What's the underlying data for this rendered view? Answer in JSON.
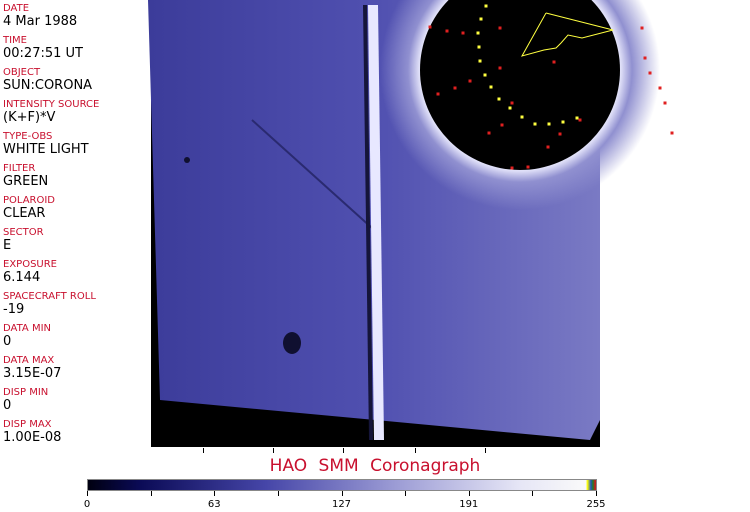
{
  "metadata": [
    {
      "label": "DATE",
      "value": "4 Mar 1988"
    },
    {
      "label": "TIME",
      "value": "00:27:51 UT"
    },
    {
      "label": "OBJECT",
      "value": "SUN:CORONA"
    },
    {
      "label": "INTENSITY SOURCE",
      "value": "(K+F)*V"
    },
    {
      "label": "TYPE-OBS",
      "value": "WHITE LIGHT"
    },
    {
      "label": "FILTER",
      "value": "GREEN"
    },
    {
      "label": "POLAROID",
      "value": "CLEAR"
    },
    {
      "label": "SECTOR",
      "value": "E"
    },
    {
      "label": "EXPOSURE",
      "value": "6.144"
    },
    {
      "label": "SPACECRAFT ROLL",
      "value": "-19"
    },
    {
      "label": "DATA MIN",
      "value": "0"
    },
    {
      "label": "DATA MAX",
      "value": "3.15E-07"
    },
    {
      "label": "DISP MIN",
      "value": "0"
    },
    {
      "label": "DISP MAX",
      "value": "1.00E-08"
    }
  ],
  "title": "HAO  SMM Coronagraph",
  "colorbar": {
    "ticks": [
      "0",
      "63",
      "127",
      "191",
      "255"
    ],
    "colors": {
      "low": "#000010",
      "mid": "#4646a8",
      "high": "#fafafa"
    }
  },
  "colors": {
    "label": "#c8102e",
    "image": "#4a4aa8",
    "marker_red": "#e02020",
    "marker_yellow": "#ffff40"
  }
}
